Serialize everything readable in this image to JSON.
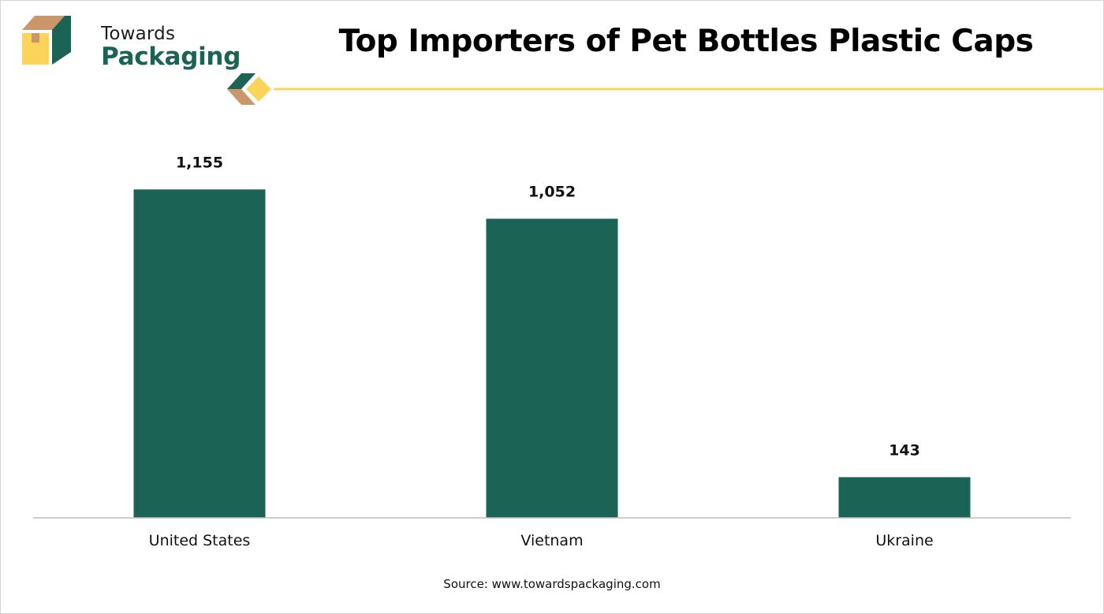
{
  "brand": {
    "line1": "Towards",
    "line2": "Packaging",
    "color_primary": "#1a6355",
    "color_accent": "#fdd45a",
    "color_box_top": "#c9976a"
  },
  "source": "Source: www.towardspackaging.com",
  "chart_data": {
    "type": "bar",
    "title": "Top Importers of Pet Bottles Plastic Caps",
    "categories": [
      "United States",
      "Vietnam",
      "Ukraine"
    ],
    "values": [
      1155,
      1052,
      143
    ],
    "value_labels": [
      "1,155",
      "1,052",
      "143"
    ],
    "xlabel": "",
    "ylabel": "",
    "ylim": [
      0,
      1350
    ],
    "grid": false,
    "legend": "none",
    "bar_color": "#1a6355"
  }
}
